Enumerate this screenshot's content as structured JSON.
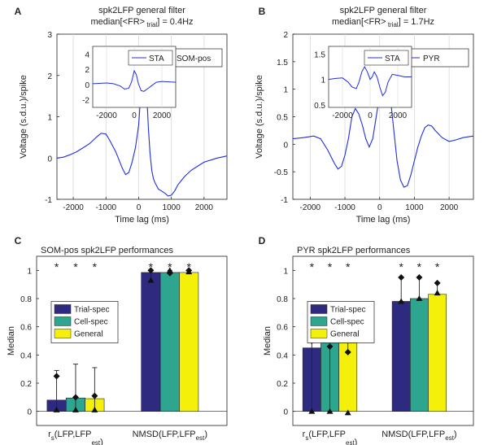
{
  "chart_data": [
    {
      "panel": "A",
      "type": "line",
      "title": [
        "spk2LFP general filter",
        "median[<FR>"
      ],
      "title_sub": "trial",
      "title_tail": "] = 0.4Hz",
      "xlabel": "Time lag (ms)",
      "ylabel": "Voltage (s.d.u.)/spike",
      "xlim": [
        -2500,
        2700
      ],
      "ylim": [
        -1,
        3
      ],
      "xticks": [
        -2000,
        -1000,
        0,
        1000,
        2000
      ],
      "yticks": [
        -1,
        0,
        1,
        2,
        3
      ],
      "grid": "vertical",
      "legend": "SOM-pos",
      "legend_position": "top-right",
      "color": "#1f2fe0",
      "series": [
        {
          "name": "SOM-pos",
          "x": [
            -2500,
            -2300,
            -2100,
            -1900,
            -1700,
            -1500,
            -1300,
            -1150,
            -1000,
            -900,
            -800,
            -700,
            -600,
            -500,
            -400,
            -300,
            -200,
            -100,
            0,
            50,
            100,
            150,
            200,
            250,
            300,
            350,
            400,
            450,
            500,
            600,
            700,
            800,
            900,
            1000,
            1100,
            1200,
            1400,
            1600,
            1800,
            2000,
            2200,
            2400,
            2700
          ],
          "y": [
            0.0,
            0.02,
            0.08,
            0.15,
            0.25,
            0.35,
            0.5,
            0.6,
            0.58,
            0.45,
            0.3,
            0.15,
            -0.05,
            -0.25,
            -0.4,
            -0.35,
            -0.1,
            0.25,
            0.8,
            1.4,
            2.1,
            2.5,
            2.2,
            1.5,
            0.7,
            0.1,
            -0.3,
            -0.5,
            -0.6,
            -0.75,
            -0.8,
            -0.85,
            -0.92,
            -0.9,
            -0.8,
            -0.65,
            -0.45,
            -0.3,
            -0.2,
            -0.1,
            -0.05,
            0.0,
            0.05
          ]
        }
      ],
      "inset": {
        "legend": "STA",
        "xticks": [
          -2000,
          0,
          2000
        ],
        "yticks": [
          -2,
          0,
          2,
          4
        ],
        "xlim": [
          -3000,
          3000
        ],
        "ylim": [
          -3,
          5
        ],
        "x": [
          -3000,
          -2500,
          -2000,
          -1500,
          -1000,
          -700,
          -400,
          -200,
          0,
          150,
          300,
          500,
          700,
          1000,
          1300,
          1600,
          2000,
          2500,
          3000
        ],
        "y": [
          0.1,
          0.15,
          0.2,
          0.1,
          -0.2,
          -0.6,
          -0.5,
          0.3,
          1.8,
          1.3,
          0.1,
          -0.8,
          -0.9,
          -0.5,
          -0.1,
          0.3,
          0.4,
          0.35,
          0.3
        ]
      }
    },
    {
      "panel": "B",
      "type": "line",
      "title": [
        "spk2LFP general filter",
        "median[<FR>"
      ],
      "title_sub": "trial",
      "title_tail": "] = 1.7Hz",
      "xlabel": "Time lag (ms)",
      "ylabel": "Voltage (s.d.u.)/spike",
      "xlim": [
        -2500,
        2700
      ],
      "ylim": [
        -1,
        2
      ],
      "xticks": [
        -2000,
        -1000,
        0,
        1000,
        2000
      ],
      "yticks": [
        -1,
        -0.5,
        0,
        0.5,
        1,
        1.5,
        2
      ],
      "grid": "vertical",
      "legend": "PYR",
      "legend_position": "top-right",
      "color": "#1f2fe0",
      "series": [
        {
          "name": "PYR",
          "x": [
            -2500,
            -2200,
            -1900,
            -1700,
            -1500,
            -1300,
            -1200,
            -1100,
            -1000,
            -900,
            -800,
            -700,
            -600,
            -500,
            -400,
            -300,
            -200,
            -100,
            0,
            100,
            150,
            200,
            250,
            300,
            400,
            500,
            600,
            700,
            800,
            900,
            1000,
            1100,
            1200,
            1300,
            1400,
            1500,
            1600,
            1800,
            2000,
            2200,
            2400,
            2700
          ],
          "y": [
            0.1,
            0.12,
            0.15,
            0.1,
            -0.1,
            -0.35,
            -0.45,
            -0.4,
            -0.2,
            0.1,
            0.5,
            0.65,
            0.55,
            0.35,
            0.1,
            -0.05,
            0.1,
            0.5,
            0.9,
            1.4,
            1.62,
            1.55,
            1.3,
            0.9,
            0.3,
            -0.3,
            -0.65,
            -0.78,
            -0.75,
            -0.55,
            -0.3,
            -0.05,
            0.15,
            0.3,
            0.35,
            0.33,
            0.25,
            0.12,
            0.05,
            0.08,
            0.12,
            0.15
          ]
        }
      ],
      "inset": {
        "legend": "STA",
        "xticks": [
          -2000,
          0,
          2000
        ],
        "yticks": [
          0.5,
          1,
          1.5
        ],
        "xlim": [
          -3000,
          3000
        ],
        "ylim": [
          0.45,
          1.65
        ],
        "x": [
          -3000,
          -2500,
          -2000,
          -1600,
          -1300,
          -1000,
          -800,
          -600,
          -400,
          -200,
          0,
          150,
          300,
          500,
          700,
          900,
          1100,
          1300,
          1600,
          2000,
          2500,
          3000
        ],
        "y": [
          1.0,
          1.02,
          1.03,
          0.95,
          0.85,
          0.82,
          0.95,
          1.15,
          1.25,
          1.15,
          1.0,
          1.05,
          1.15,
          1.05,
          0.85,
          0.68,
          0.75,
          0.95,
          1.1,
          1.08,
          1.05,
          1.05
        ]
      }
    },
    {
      "panel": "C",
      "type": "bar",
      "title": "SOM-pos spk2LFP performances",
      "ylabel": "Median",
      "ylim": [
        -0.1,
        1.1
      ],
      "yticks": [
        0,
        0.2,
        0.4,
        0.6,
        0.8,
        1
      ],
      "categories": [
        "r",
        "NMSD(LFP,LFP"
      ],
      "category_sub": [
        "s",
        "est"
      ],
      "category_tail": [
        "(LFP,LFP",
        ")"
      ],
      "category_sub2": [
        "est",
        ""
      ],
      "category_tail2": [
        ")",
        ""
      ],
      "significance_marker": "*",
      "legend_position": "upper-left",
      "series": [
        {
          "name": "Trial-spec",
          "color": "#2e2a80",
          "values": [
            0.08,
            0.985
          ],
          "err_low": [
            0.08,
            0.07
          ],
          "err_high": [
            0.21,
            0.015
          ],
          "markers": [
            [
              0.25,
              0.01
            ],
            [
              1.0,
              0.93
            ]
          ]
        },
        {
          "name": "Cell-spec",
          "color": "#2ea68f",
          "values": [
            0.095,
            0.985
          ],
          "err_low": [
            0.095,
            0.0
          ],
          "err_high": [
            0.24,
            0.015
          ],
          "markers": [
            [
              0.1,
              0.01
            ],
            [
              0.98,
              1.0
            ]
          ]
        },
        {
          "name": "General",
          "color": "#f5f00a",
          "values": [
            0.09,
            0.985
          ],
          "err_low": [
            0.09,
            0.0
          ],
          "err_high": [
            0.22,
            0.015
          ],
          "markers": [
            [
              0.11,
              0.01
            ],
            [
              1.0,
              0.99
            ]
          ]
        }
      ]
    },
    {
      "panel": "D",
      "type": "bar",
      "title": "PYR spk2LFP performances",
      "ylabel": "Median",
      "ylim": [
        -0.1,
        1.1
      ],
      "yticks": [
        0,
        0.2,
        0.4,
        0.6,
        0.8,
        1
      ],
      "categories": [
        "r",
        "NMSD(LFP,LFP"
      ],
      "category_sub": [
        "s",
        "est"
      ],
      "category_tail": [
        "(LFP,LFP",
        ")"
      ],
      "category_sub2": [
        "est",
        ""
      ],
      "category_tail2": [
        ")",
        ""
      ],
      "significance_marker": "*",
      "legend_position": "upper-left",
      "series": [
        {
          "name": "Trial-spec",
          "color": "#2e2a80",
          "values": [
            0.45,
            0.78
          ],
          "err_low": [
            0.45,
            0.0
          ],
          "err_high": [
            0.18,
            0.17
          ],
          "markers": [
            [
              0.5,
              0.0
            ],
            [
              0.95,
              0.78
            ]
          ]
        },
        {
          "name": "Cell-spec",
          "color": "#2ea68f",
          "values": [
            0.485,
            0.8
          ],
          "err_low": [
            0.485,
            0.0
          ],
          "err_high": [
            0.155,
            0.15
          ],
          "markers": [
            [
              0.46,
              0.0
            ],
            [
              0.95,
              0.8
            ]
          ]
        },
        {
          "name": "General",
          "color": "#f5f00a",
          "values": [
            0.485,
            0.83
          ],
          "err_low": [
            0.07,
            0.0
          ],
          "err_high": [
            0.155,
            0.08
          ],
          "markers": [
            [
              0.42,
              -0.01
            ],
            [
              0.91,
              0.84
            ]
          ]
        }
      ]
    }
  ]
}
